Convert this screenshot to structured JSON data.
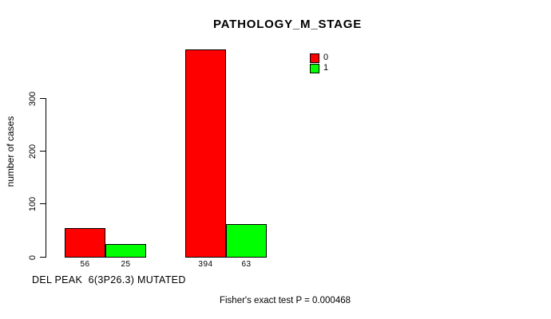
{
  "title": "PATHOLOGY_M_STAGE",
  "footer": "Fisher's exact test P = 0.000468",
  "legend": [
    {
      "label": "0",
      "color": "#ff0000"
    },
    {
      "label": "1",
      "color": "#00ff00"
    }
  ],
  "chart_data": {
    "type": "bar",
    "title": "PATHOLOGY_M_STAGE",
    "xlabel": "DEL PEAK  6(3P26.3) MUTATED",
    "ylabel": "number of cases",
    "ylim": [
      0,
      400
    ],
    "yticks": [
      0,
      100,
      200,
      300
    ],
    "grid": false,
    "legend_position": "top-right",
    "groups": 2,
    "series": [
      {
        "name": "0",
        "color": "#ff0000",
        "values": [
          56,
          394
        ]
      },
      {
        "name": "1",
        "color": "#00ff00",
        "values": [
          25,
          63
        ]
      }
    ],
    "bar_value_labels": [
      "56",
      "25",
      "394",
      "63"
    ]
  }
}
